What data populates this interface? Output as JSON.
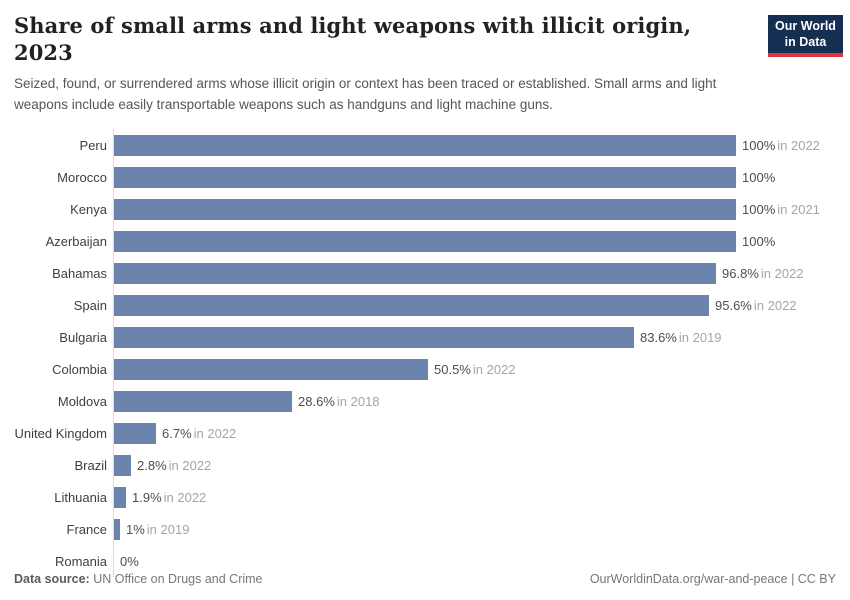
{
  "header": {
    "title": "Share of small arms and light weapons with illicit origin, 2023",
    "subtitle": "Seized, found, or surrendered arms whose illicit origin or context has been traced or established. Small arms and light weapons include easily transportable weapons such as handguns and light machine guns.",
    "logo_line1": "Our World",
    "logo_line2": "in Data"
  },
  "chart_data": {
    "type": "bar",
    "orientation": "horizontal",
    "title": "Share of small arms and light weapons with illicit origin, 2023",
    "xlim": [
      0,
      100
    ],
    "grid": false,
    "legend": "none",
    "bar_color": "#6c84ad",
    "categories": [
      "Peru",
      "Morocco",
      "Kenya",
      "Azerbaijan",
      "Bahamas",
      "Spain",
      "Bulgaria",
      "Colombia",
      "Moldova",
      "United Kingdom",
      "Brazil",
      "Lithuania",
      "France",
      "Romania"
    ],
    "values": [
      100,
      100,
      100,
      100,
      96.8,
      95.6,
      83.6,
      50.5,
      28.6,
      6.7,
      2.8,
      1.9,
      1,
      0
    ],
    "value_labels": [
      "100%",
      "100%",
      "100%",
      "100%",
      "96.8%",
      "95.6%",
      "83.6%",
      "50.5%",
      "28.6%",
      "6.7%",
      "2.8%",
      "1.9%",
      "1%",
      "0%"
    ],
    "year_notes": [
      "in 2022",
      "",
      "in 2021",
      "",
      "in 2022",
      "in 2022",
      "in 2019",
      "in 2022",
      "in 2018",
      "in 2022",
      "in 2022",
      "in 2022",
      "in 2019",
      ""
    ]
  },
  "colors": {
    "bar": "#6c84ad",
    "axis_line": "#d9d9d9",
    "logo_background": "#152e51",
    "logo_stripe": "#d7383f"
  },
  "footer": {
    "source_label": "Data source:",
    "source_value": "UN Office on Drugs and Crime",
    "credit": "OurWorldinData.org/war-and-peace | CC BY"
  }
}
